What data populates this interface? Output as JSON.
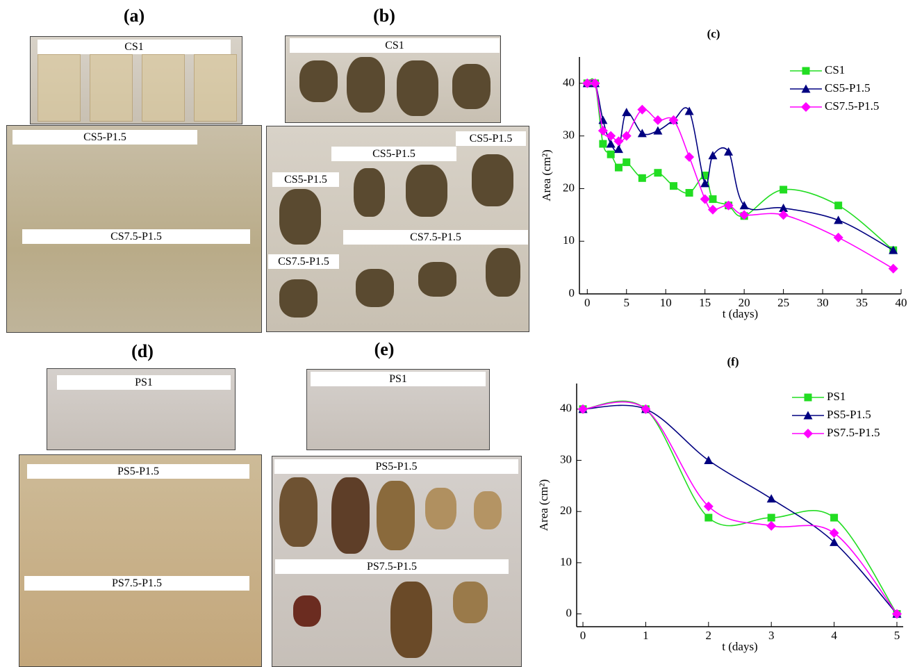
{
  "panels": [
    {
      "title": "(a)",
      "photos": [
        {
          "labels": [
            "CS1"
          ]
        },
        {
          "labels": [
            "CS5-P1.5",
            "CS7.5-P1.5"
          ]
        }
      ]
    },
    {
      "title": "(b)",
      "photos": [
        {
          "labels": [
            "CS1"
          ]
        },
        {
          "labels": [
            "CS5-P1.5",
            "CS5-P1.5",
            "CS5-P1.5",
            "CS7.5-P1.5",
            "CS7.5-P1.5"
          ]
        }
      ]
    },
    {
      "title": "(d)",
      "photos": [
        {
          "labels": [
            "PS1"
          ]
        },
        {
          "labels": [
            "PS5-P1.5",
            "PS7.5-P1.5"
          ]
        }
      ]
    },
    {
      "title": "(e)",
      "photos": [
        {
          "labels": [
            "PS1"
          ]
        },
        {
          "labels": [
            "PS5-P1.5",
            "PS7.5-P1.5"
          ]
        }
      ]
    }
  ],
  "chart_data": [
    {
      "type": "line",
      "title": "(c)",
      "x_label": "t (days)",
      "y_label": "Area (cm²)",
      "x": [
        0,
        1,
        2,
        3,
        4,
        5,
        7,
        9,
        11,
        13,
        15,
        16,
        18,
        20,
        25,
        32,
        39
      ],
      "series": [
        {
          "name": "CS1",
          "color": "#22dd22",
          "marker": "square",
          "values": [
            40,
            40,
            28.5,
            26.5,
            24,
            25,
            22,
            23,
            20.5,
            19.2,
            22.5,
            18,
            16.8,
            14.8,
            19.8,
            16.8,
            8.3
          ]
        },
        {
          "name": "CS5-P1.5",
          "color": "#000080",
          "marker": "triangle",
          "values": [
            40,
            40,
            33,
            28.5,
            27.5,
            34.5,
            30.5,
            31,
            33,
            34.7,
            21,
            26.3,
            27,
            16.8,
            16.3,
            14,
            8.3
          ]
        },
        {
          "name": "CS7.5-P1.5",
          "color": "#ff00ff",
          "marker": "diamond",
          "values": [
            40,
            40,
            31,
            30,
            29,
            30,
            35,
            33,
            33,
            26,
            18,
            16,
            16.8,
            15,
            15,
            10.7,
            4.8
          ]
        }
      ],
      "xlim": [
        -1,
        40
      ],
      "ylim": [
        0,
        45
      ],
      "xticks": [
        0,
        5,
        10,
        15,
        20,
        25,
        30,
        35,
        40
      ],
      "yticks": [
        0,
        10,
        20,
        30,
        40
      ],
      "legend": "upper right"
    },
    {
      "type": "line",
      "title": "(f)",
      "x_label": "t (days)",
      "y_label": "Area (cm²)",
      "x": [
        0,
        1,
        2,
        3,
        4,
        5
      ],
      "series": [
        {
          "name": "PS1",
          "color": "#22dd22",
          "marker": "square",
          "values": [
            40,
            40,
            18.8,
            18.8,
            18.8,
            0
          ]
        },
        {
          "name": "PS5-P1.5",
          "color": "#000080",
          "marker": "triangle",
          "values": [
            40,
            40,
            30,
            22.5,
            14,
            0
          ]
        },
        {
          "name": "PS7.5-P1.5",
          "color": "#ff00ff",
          "marker": "diamond",
          "values": [
            40,
            40,
            21,
            17.2,
            15.8,
            0
          ]
        }
      ],
      "xlim": [
        -0.1,
        5.1
      ],
      "ylim": [
        -2.5,
        45
      ],
      "xticks": [
        0,
        1,
        2,
        3,
        4,
        5
      ],
      "yticks": [
        0,
        10,
        20,
        30,
        40
      ],
      "legend": "upper right"
    }
  ]
}
